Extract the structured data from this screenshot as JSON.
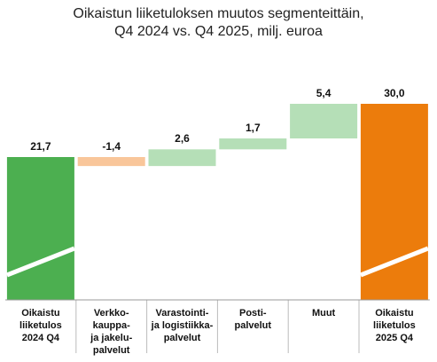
{
  "chart_data": {
    "type": "bar",
    "subtype": "waterfall",
    "title_lines": [
      "Oikaistun liiketuloksen muutos segmenteittäin,",
      "Q4 2024 vs. Q4 2025, milj. euroa"
    ],
    "categories": [
      "Oikaistu\nliiketulos\n2024 Q4",
      "Verkko-\nkauppa-\nja jakelu-\npalvelut",
      "Varastointi-\nja logistiikka-\npalvelut",
      "Posti-\npalvelut",
      "Muut",
      "Oikaistu\nliiketulos\n2025 Q4"
    ],
    "kinds": [
      "total",
      "delta",
      "delta",
      "delta",
      "delta",
      "total"
    ],
    "values": [
      21.7,
      -1.4,
      2.6,
      1.7,
      5.4,
      30.0
    ],
    "value_labels": [
      "21,7",
      "-1,4",
      "2,6",
      "1,7",
      "5,4",
      "30,0"
    ],
    "ylim": [
      0,
      30.0
    ],
    "axis_break": true,
    "grid": false,
    "colors": {
      "start_total": "#4caf50",
      "end_total": "#ec7c0c",
      "positive": "#b5dfb7",
      "negative": "#f9c69a",
      "break_stripe": "#ffffff",
      "baseline": "#999999",
      "separator": "#bbbbbb"
    }
  }
}
